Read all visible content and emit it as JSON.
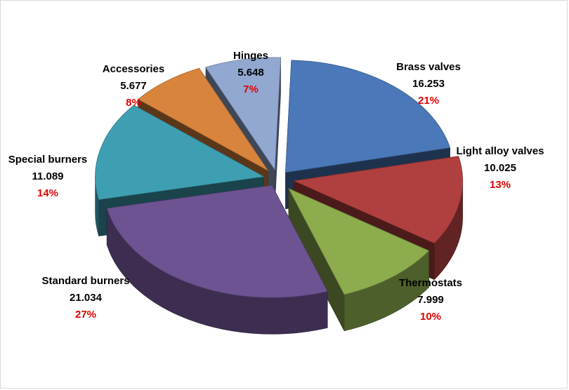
{
  "chart_data": {
    "type": "pie",
    "style": "3d-exploded",
    "slices": [
      {
        "name": "Brass valves",
        "value": "16.253",
        "percent": "21%",
        "color": "#4a78b8"
      },
      {
        "name": "Light alloy valves",
        "value": "10.025",
        "percent": "13%",
        "color": "#b0403f"
      },
      {
        "name": "Thermostats",
        "value": "7.999",
        "percent": "10%",
        "color": "#8cac4e"
      },
      {
        "name": "Standard burners",
        "value": "21.034",
        "percent": "27%",
        "color": "#6e5393"
      },
      {
        "name": "Special burners",
        "value": "11.089",
        "percent": "14%",
        "color": "#3e9fb2"
      },
      {
        "name": "Accessories",
        "value": "5.677",
        "percent": "8%",
        "color": "#d9843c"
      },
      {
        "name": "Hinges",
        "value": "5.648",
        "percent": "7%",
        "color": "#93a8d0"
      }
    ]
  }
}
